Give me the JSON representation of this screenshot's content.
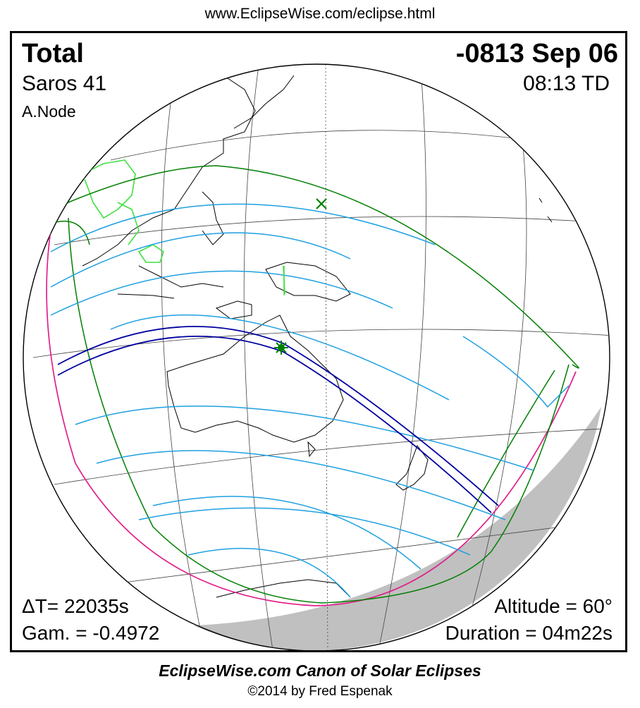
{
  "header": {
    "url": "www.EclipseWise.com/eclipse.html"
  },
  "eclipse": {
    "type": "Total",
    "date": "-0813 Sep 06",
    "saros": "Saros  41",
    "time": "08:13 TD",
    "node": "A.Node",
    "delta_t": "ΔT=  22035s",
    "gamma": "Gam. = -0.4972",
    "altitude": "Altitude = 60°",
    "duration": "Duration = 04m22s"
  },
  "footer": {
    "title": "EclipseWise.com Canon of Solar Eclipses",
    "copyright": "©2014 by Fred Espenak"
  },
  "colors": {
    "totality_path": "#0000a0",
    "partial_limits": "#1ea0e0",
    "penumbra_boundary": "#007f00",
    "rise_set_curve": "#e0208a",
    "ancient_coastline": "#40e040",
    "earth_shadow": "#c0c0c0",
    "greatest_eclipse_marker": "#007f00"
  },
  "markers": {
    "greatest_eclipse": "star-marker",
    "subsolar_point": "x-marker"
  }
}
